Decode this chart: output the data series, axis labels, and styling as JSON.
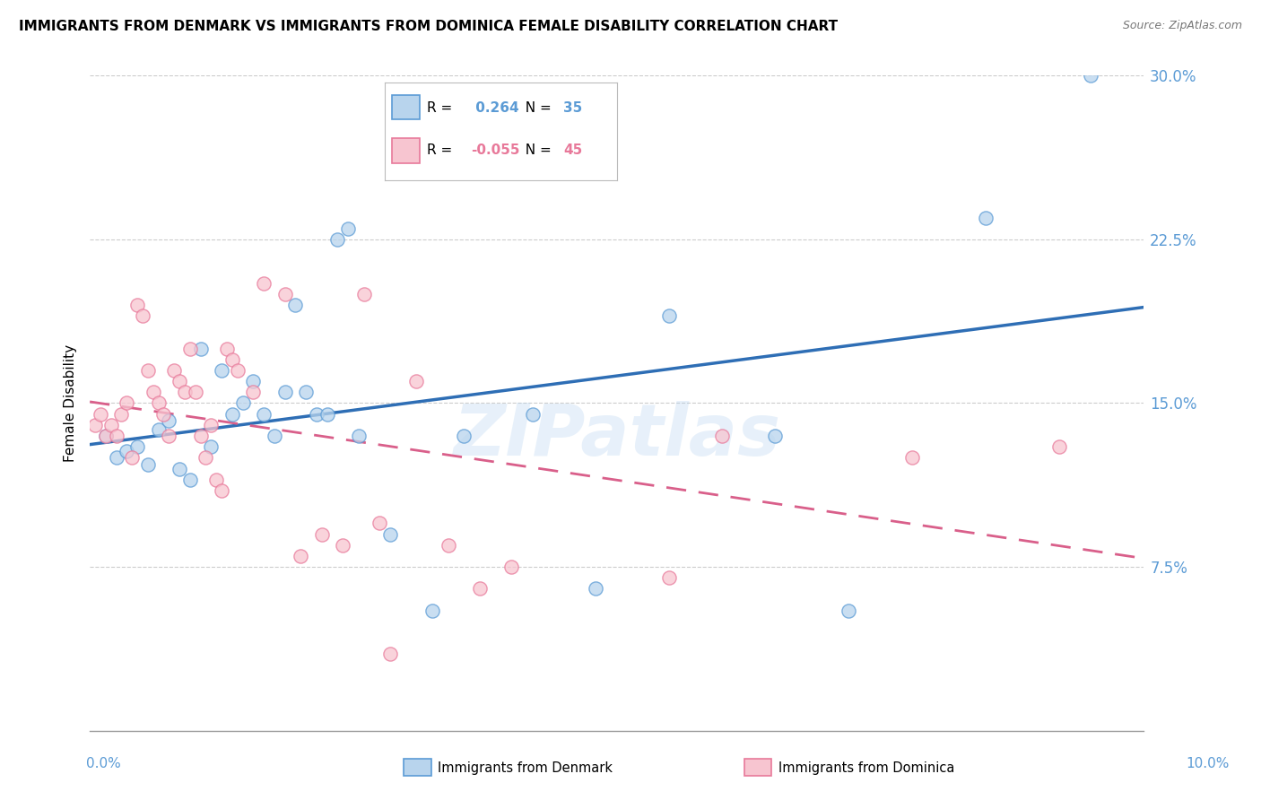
{
  "title": "IMMIGRANTS FROM DENMARK VS IMMIGRANTS FROM DOMINICA FEMALE DISABILITY CORRELATION CHART",
  "source": "Source: ZipAtlas.com",
  "ylabel": "Female Disability",
  "xlim": [
    0.0,
    10.0
  ],
  "ylim": [
    0.0,
    30.0
  ],
  "yticks": [
    0.0,
    7.5,
    15.0,
    22.5,
    30.0
  ],
  "ytick_labels": [
    "",
    "7.5%",
    "15.0%",
    "22.5%",
    "30.0%"
  ],
  "denmark_R": 0.264,
  "denmark_N": 35,
  "dominica_R": -0.055,
  "dominica_N": 45,
  "denmark_fill_color": "#b8d4ed",
  "denmark_edge_color": "#5b9bd5",
  "dominica_fill_color": "#f7c5d0",
  "dominica_edge_color": "#e8799a",
  "denmark_line_color": "#2e6eb5",
  "dominica_line_color": "#d95f8a",
  "background_color": "#ffffff",
  "watermark": "ZIPatlas",
  "denmark_points_x": [
    0.15,
    0.25,
    0.35,
    0.45,
    0.55,
    0.65,
    0.75,
    0.85,
    0.95,
    1.05,
    1.15,
    1.25,
    1.35,
    1.45,
    1.55,
    1.65,
    1.75,
    1.85,
    1.95,
    2.05,
    2.15,
    2.25,
    2.35,
    2.45,
    2.55,
    2.85,
    3.25,
    3.55,
    4.2,
    4.8,
    5.5,
    6.5,
    7.2,
    8.5,
    9.5
  ],
  "denmark_points_y": [
    13.5,
    12.5,
    12.8,
    13.0,
    12.2,
    13.8,
    14.2,
    12.0,
    11.5,
    17.5,
    13.0,
    16.5,
    14.5,
    15.0,
    16.0,
    14.5,
    13.5,
    15.5,
    19.5,
    15.5,
    14.5,
    14.5,
    22.5,
    23.0,
    13.5,
    9.0,
    5.5,
    13.5,
    14.5,
    6.5,
    19.0,
    13.5,
    5.5,
    23.5,
    30.0
  ],
  "dominica_points_x": [
    0.05,
    0.1,
    0.15,
    0.2,
    0.25,
    0.3,
    0.35,
    0.4,
    0.45,
    0.5,
    0.55,
    0.6,
    0.65,
    0.7,
    0.75,
    0.8,
    0.85,
    0.9,
    0.95,
    1.0,
    1.05,
    1.1,
    1.15,
    1.2,
    1.25,
    1.3,
    1.35,
    1.4,
    1.55,
    1.65,
    1.85,
    2.0,
    2.2,
    2.4,
    2.6,
    2.75,
    2.85,
    3.1,
    3.4,
    3.7,
    4.0,
    5.5,
    6.0,
    7.8,
    9.2
  ],
  "dominica_points_y": [
    14.0,
    14.5,
    13.5,
    14.0,
    13.5,
    14.5,
    15.0,
    12.5,
    19.5,
    19.0,
    16.5,
    15.5,
    15.0,
    14.5,
    13.5,
    16.5,
    16.0,
    15.5,
    17.5,
    15.5,
    13.5,
    12.5,
    14.0,
    11.5,
    11.0,
    17.5,
    17.0,
    16.5,
    15.5,
    20.5,
    20.0,
    8.0,
    9.0,
    8.5,
    20.0,
    9.5,
    3.5,
    16.0,
    8.5,
    6.5,
    7.5,
    7.0,
    13.5,
    12.5,
    13.0
  ]
}
